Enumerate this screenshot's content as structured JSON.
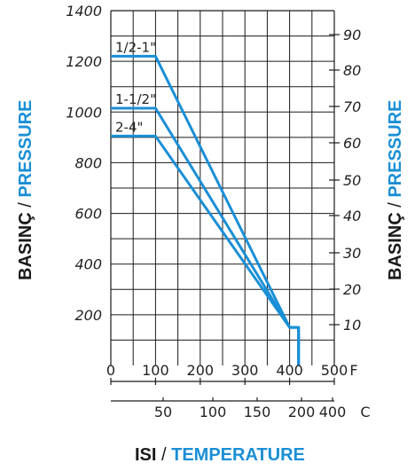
{
  "axis_titles": {
    "y_left": {
      "tr": "BASINÇ",
      "sep": " / ",
      "en": "PRESSURE"
    },
    "y_right": {
      "tr": "BASINÇ",
      "sep": " / ",
      "en": "PRESSURE"
    },
    "x": {
      "tr": "ISI",
      "sep": " / ",
      "en": "TEMPERATURE"
    }
  },
  "colors": {
    "series": "#1a8fd6",
    "grid": "#1a1a1a",
    "accent_text": "#1a8fd6"
  },
  "chart_data": {
    "type": "line",
    "title": "",
    "x_primary": {
      "unit": "F",
      "ticks": [
        "0",
        "100",
        "200",
        "300",
        "400",
        "500"
      ],
      "lim": [
        0,
        500
      ]
    },
    "x_secondary": {
      "unit": "C",
      "ticks": [
        "50",
        "100",
        "150",
        "200",
        "400"
      ]
    },
    "y_left": {
      "ticks": [
        "200",
        "400",
        "600",
        "800",
        "1000",
        "1200",
        "1400"
      ],
      "lim": [
        0,
        1400
      ]
    },
    "y_right": {
      "ticks": [
        "10",
        "20",
        "30",
        "40",
        "50",
        "60",
        "70",
        "80",
        "90"
      ]
    },
    "grid": true,
    "series": [
      {
        "name": "1/2-1\"",
        "points": [
          [
            0,
            1220
          ],
          [
            100,
            1220
          ],
          [
            400,
            150
          ],
          [
            420,
            150
          ],
          [
            420,
            0
          ]
        ]
      },
      {
        "name": "1-1/2\"",
        "points": [
          [
            0,
            1015
          ],
          [
            100,
            1015
          ],
          [
            400,
            150
          ],
          [
            420,
            150
          ],
          [
            420,
            0
          ]
        ]
      },
      {
        "name": "2-4\"",
        "points": [
          [
            0,
            905
          ],
          [
            100,
            905
          ],
          [
            400,
            150
          ],
          [
            420,
            150
          ],
          [
            420,
            0
          ]
        ]
      }
    ]
  }
}
